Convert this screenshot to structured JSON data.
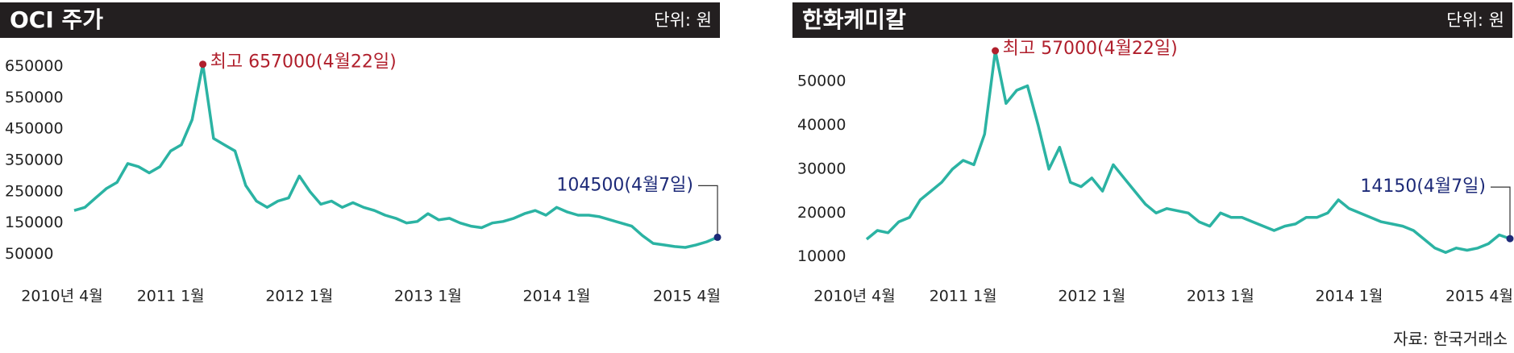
{
  "chart_data": [
    {
      "type": "line",
      "title": "OCI 주가",
      "unit": "단위: 원",
      "color": "#2bb3a3",
      "x": [
        "2010-04",
        "2010-05",
        "2010-06",
        "2010-07",
        "2010-08",
        "2010-09",
        "2010-10",
        "2010-11",
        "2010-12",
        "2011-01",
        "2011-02",
        "2011-03",
        "2011-04",
        "2011-05",
        "2011-06",
        "2011-07",
        "2011-08",
        "2011-09",
        "2011-10",
        "2011-11",
        "2011-12",
        "2012-01",
        "2012-02",
        "2012-03",
        "2012-04",
        "2012-05",
        "2012-06",
        "2012-07",
        "2012-08",
        "2012-09",
        "2012-10",
        "2012-11",
        "2012-12",
        "2013-01",
        "2013-02",
        "2013-03",
        "2013-04",
        "2013-05",
        "2013-06",
        "2013-07",
        "2013-08",
        "2013-09",
        "2013-10",
        "2013-11",
        "2013-12",
        "2014-01",
        "2014-02",
        "2014-03",
        "2014-04",
        "2014-05",
        "2014-06",
        "2014-07",
        "2014-08",
        "2014-09",
        "2014-10",
        "2014-11",
        "2014-12",
        "2015-01",
        "2015-02",
        "2015-03",
        "2015-04"
      ],
      "values": [
        190000,
        200000,
        230000,
        260000,
        280000,
        340000,
        330000,
        310000,
        330000,
        380000,
        400000,
        480000,
        657000,
        420000,
        400000,
        380000,
        270000,
        220000,
        200000,
        220000,
        230000,
        300000,
        250000,
        210000,
        220000,
        200000,
        215000,
        200000,
        190000,
        175000,
        165000,
        150000,
        155000,
        180000,
        160000,
        165000,
        150000,
        140000,
        135000,
        150000,
        155000,
        165000,
        180000,
        190000,
        175000,
        200000,
        185000,
        175000,
        175000,
        170000,
        160000,
        150000,
        140000,
        110000,
        85000,
        80000,
        75000,
        72000,
        80000,
        90000,
        104500
      ],
      "xticks": [
        {
          "value": "2010-04",
          "label": "2010년 4월"
        },
        {
          "value": "2011-01",
          "label": "2011 1월"
        },
        {
          "value": "2012-01",
          "label": "2012 1월"
        },
        {
          "value": "2013-01",
          "label": "2013 1월"
        },
        {
          "value": "2014-01",
          "label": "2014 1월"
        },
        {
          "value": "2015-04",
          "label": "2015 4월"
        }
      ],
      "ylim": [
        0,
        700000
      ],
      "yticks": [
        50000,
        150000,
        250000,
        350000,
        450000,
        550000,
        650000
      ],
      "peak_label": "최고 657000(4월22일)",
      "peak_color": "#b01f2c",
      "last_label": "104500(4월7일)",
      "last_color": "#1d2a78"
    },
    {
      "type": "line",
      "title": "한화케미칼",
      "unit": "단위: 원",
      "color": "#2bb3a3",
      "x": [
        "2010-04",
        "2010-05",
        "2010-06",
        "2010-07",
        "2010-08",
        "2010-09",
        "2010-10",
        "2010-11",
        "2010-12",
        "2011-01",
        "2011-02",
        "2011-03",
        "2011-04",
        "2011-05",
        "2011-06",
        "2011-07",
        "2011-08",
        "2011-09",
        "2011-10",
        "2011-11",
        "2011-12",
        "2012-01",
        "2012-02",
        "2012-03",
        "2012-04",
        "2012-05",
        "2012-06",
        "2012-07",
        "2012-08",
        "2012-09",
        "2012-10",
        "2012-11",
        "2012-12",
        "2013-01",
        "2013-02",
        "2013-03",
        "2013-04",
        "2013-05",
        "2013-06",
        "2013-07",
        "2013-08",
        "2013-09",
        "2013-10",
        "2013-11",
        "2013-12",
        "2014-01",
        "2014-02",
        "2014-03",
        "2014-04",
        "2014-05",
        "2014-06",
        "2014-07",
        "2014-08",
        "2014-09",
        "2014-10",
        "2014-11",
        "2014-12",
        "2015-01",
        "2015-02",
        "2015-03",
        "2015-04"
      ],
      "values": [
        14000,
        16000,
        15500,
        18000,
        19000,
        23000,
        25000,
        27000,
        30000,
        32000,
        31000,
        38000,
        57000,
        45000,
        48000,
        49000,
        40000,
        30000,
        35000,
        27000,
        26000,
        28000,
        25000,
        31000,
        28000,
        25000,
        22000,
        20000,
        21000,
        20500,
        20000,
        18000,
        17000,
        20000,
        19000,
        19000,
        18000,
        17000,
        16000,
        17000,
        17500,
        19000,
        19000,
        20000,
        23000,
        21000,
        20000,
        19000,
        18000,
        17500,
        17000,
        16000,
        14000,
        12000,
        11000,
        12000,
        11500,
        12000,
        13000,
        15000,
        14150
      ],
      "xticks": [
        {
          "value": "2010-04",
          "label": "2010년 4월"
        },
        {
          "value": "2011-01",
          "label": "2011 1월"
        },
        {
          "value": "2012-01",
          "label": "2012 1월"
        },
        {
          "value": "2013-01",
          "label": "2013 1월"
        },
        {
          "value": "2014-01",
          "label": "2014 1월"
        },
        {
          "value": "2015-04",
          "label": "2015 4월"
        }
      ],
      "ylim": [
        7000,
        57000
      ],
      "yticks": [
        10000,
        20000,
        30000,
        40000,
        50000
      ],
      "peak_label": "최고 57000(4월22일)",
      "peak_color": "#b01f2c",
      "last_label": "14150(4월7일)",
      "last_color": "#1d2a78"
    }
  ],
  "source": "자료: 한국거래소"
}
